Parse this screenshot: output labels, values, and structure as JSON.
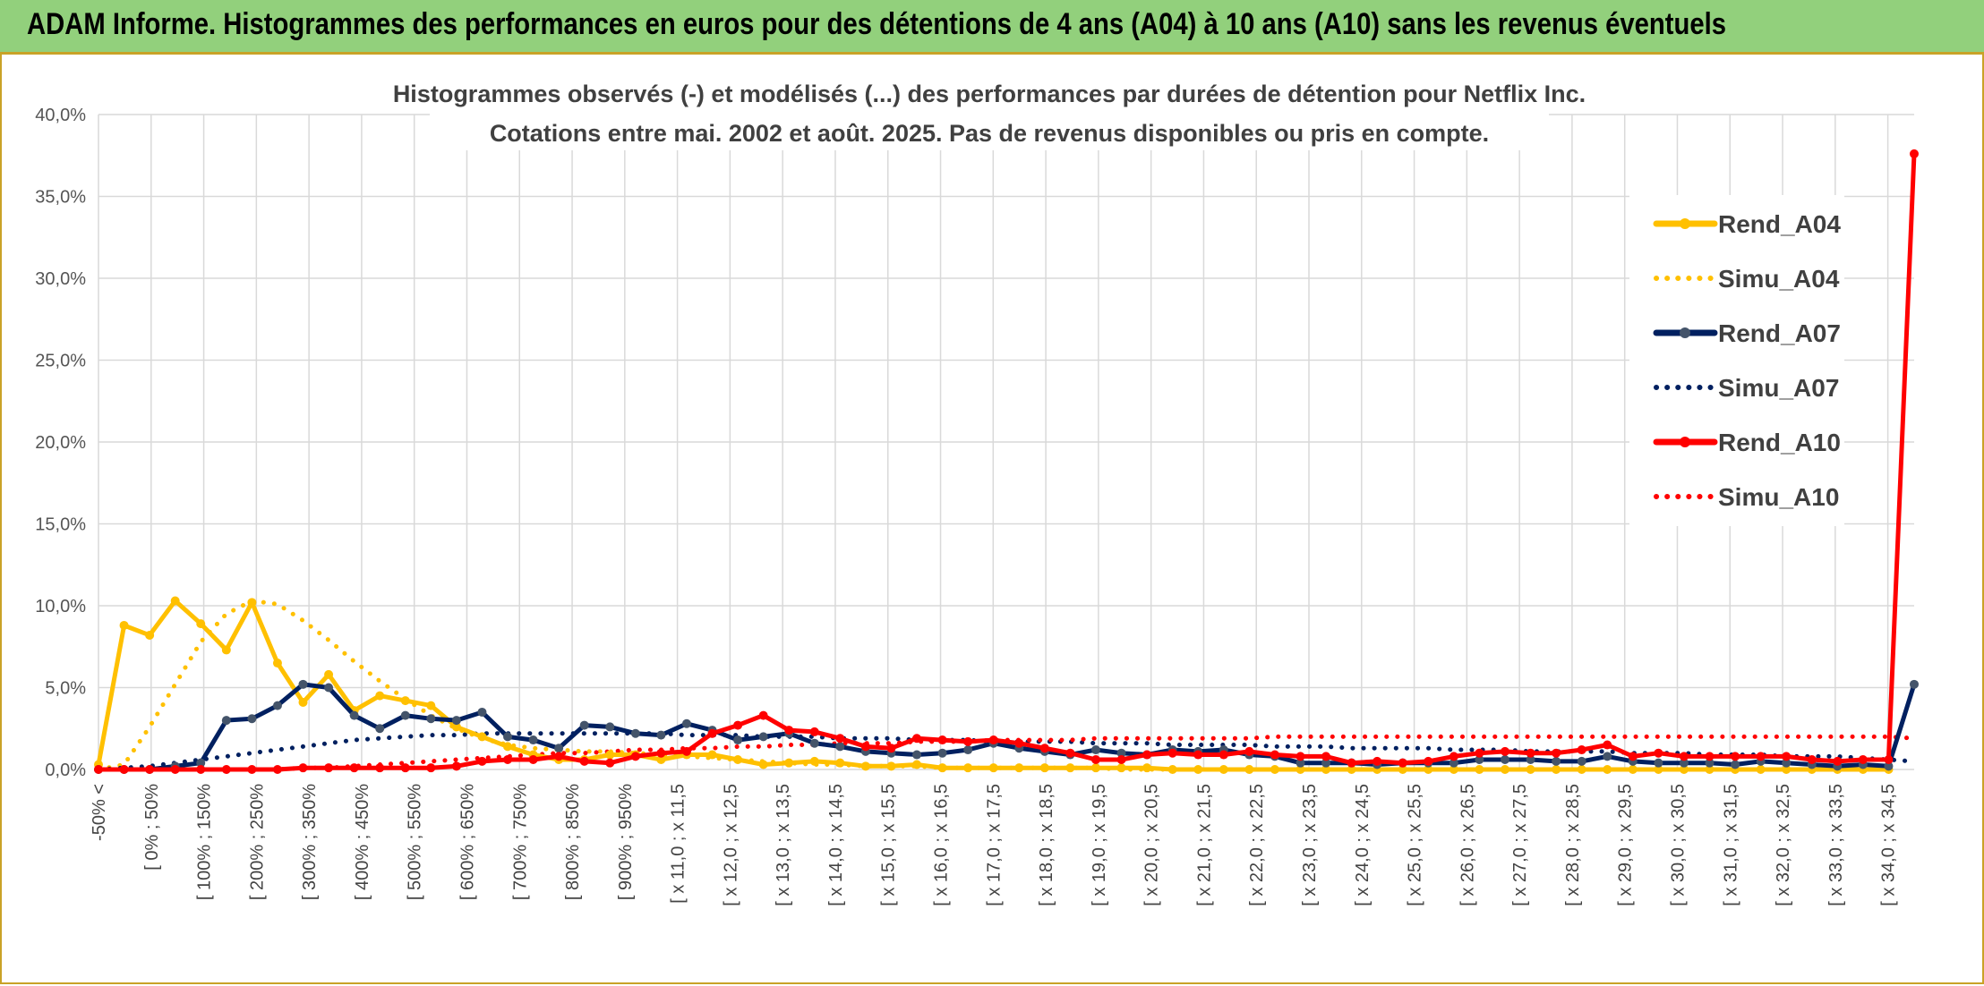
{
  "banner": {
    "title": "ADAM Informe. Histogrammes des performances en euros pour des détentions de 4 ans (A04) à 10 ans (A10) sans les revenus éventuels"
  },
  "colors": {
    "banner_bg": "#92D07C",
    "banner_border": "#C9A227",
    "A04": "#FFC000",
    "A07": "#002060",
    "A07_marker": "#44546A",
    "A10": "#FF0000",
    "grid": "#D9D9D9"
  },
  "chart_data": {
    "type": "line",
    "title_lines": [
      "Histogrammes observés (-) et modélisés (...) des performances par durées de détention pour Netflix Inc.",
      "Cotations entre mai. 2002 et août. 2025. Pas de revenus disponibles ou pris en compte."
    ],
    "ylim": [
      0,
      40
    ],
    "y_ticks": [
      "0,0%",
      "5,0%",
      "10,0%",
      "15,0%",
      "20,0%",
      "25,0%",
      "30,0%",
      "35,0%",
      "40,0%"
    ],
    "grid": true,
    "legend_position": "right",
    "x_labels_shown": [
      "-50% <",
      "[ 0% ; 50%",
      "[ 100% ; 150%",
      "[ 200% ; 250%",
      "[ 300% ; 350%",
      "[ 400% ; 450%",
      "[ 500% ; 550%",
      "[ 600% ; 650%",
      "[ 700% ; 750%",
      "[ 800% ; 850%",
      "[ 900% ; 950%",
      "[ x 11,0 ; x 11,5",
      "[ x 12,0 ; x 12,5",
      "[ x 13,0 ; x 13,5",
      "[ x 14,0 ; x 14,5",
      "[ x 15,0 ; x 15,5",
      "[ x 16,0 ; x 16,5",
      "[ x 17,0 ; x 17,5",
      "[ x 18,0 ; x 18,5",
      "[ x 19,0 ; x 19,5",
      "[ x 20,0 ; x 20,5",
      "[ x 21,0 ; x 21,5",
      "[ x 22,0 ; x 22,5",
      "[ x 23,0 ; x 23,5",
      "[ x 24,0 ; x 24,5",
      "[ x 25,0 ; x 25,5",
      "[ x 26,0 ; x 26,5",
      "[ x 27,0 ; x 27,5",
      "[ x 28,0 ; x 28,5",
      "[ x 29,0 ; x 29,5",
      "[ x 30,0 ; x 30,5",
      "[ x 31,0 ; x 31,5",
      "[ x 32,0 ; x 32,5",
      "[ x 33,0 ; x 33,5",
      "[ x 34,0 ; x 34,5"
    ],
    "series": [
      {
        "name": "Rend_A04",
        "style": "solid",
        "marker": true,
        "color": "#FFC000",
        "values": [
          0.3,
          8.8,
          8.2,
          10.3,
          8.9,
          7.3,
          10.2,
          6.5,
          4.1,
          5.8,
          3.6,
          4.5,
          4.2,
          3.9,
          2.6,
          2.0,
          1.4,
          0.9,
          0.6,
          0.6,
          0.9,
          0.9,
          0.6,
          0.9,
          0.9,
          0.6,
          0.3,
          0.4,
          0.5,
          0.4,
          0.2,
          0.2,
          0.3,
          0.1,
          0.1,
          0.1,
          0.1,
          0.1,
          0.1,
          0.1,
          0.1,
          0.1,
          0,
          0,
          0,
          0,
          0,
          0,
          0,
          0,
          0,
          0,
          0,
          0,
          0,
          0,
          0,
          0,
          0,
          0,
          0,
          0,
          0,
          0,
          0,
          0,
          0,
          0,
          0,
          0,
          0
        ]
      },
      {
        "name": "Simu_A04",
        "style": "dotted",
        "marker": false,
        "color": "#FFC000",
        "values": [
          0,
          0.3,
          2.6,
          5.2,
          7.8,
          9.5,
          10.3,
          10.1,
          9.1,
          7.9,
          6.6,
          5.4,
          4.3,
          3.3,
          2.5,
          1.9,
          1.5,
          1.3,
          1.2,
          1.1,
          1.1,
          1.0,
          0.9,
          0.8,
          0.7,
          0.6,
          0.5,
          0.4,
          0.3,
          0.3,
          0.2,
          0.2,
          0.2,
          0.1,
          0.1,
          0.1,
          0.1,
          0.1,
          0.1,
          0.1,
          0,
          0,
          0,
          0,
          0,
          0,
          0,
          0,
          0,
          0,
          0,
          0,
          0,
          0,
          0,
          0,
          0,
          0,
          0,
          0,
          0,
          0,
          0,
          0,
          0,
          0,
          0,
          0,
          0,
          0,
          0
        ]
      },
      {
        "name": "Rend_A07",
        "style": "solid",
        "marker": true,
        "color": "#002060",
        "values": [
          0,
          0,
          0,
          0.2,
          0.4,
          3.0,
          3.1,
          3.9,
          5.2,
          5.0,
          3.3,
          2.5,
          3.3,
          3.1,
          3.0,
          3.5,
          2.0,
          1.8,
          1.3,
          2.7,
          2.6,
          2.2,
          2.1,
          2.8,
          2.4,
          1.8,
          2.0,
          2.2,
          1.6,
          1.4,
          1.1,
          1.0,
          0.9,
          1.0,
          1.2,
          1.6,
          1.3,
          1.1,
          0.9,
          1.2,
          1.0,
          0.9,
          1.2,
          1.1,
          1.2,
          0.9,
          0.8,
          0.4,
          0.4,
          0.4,
          0.3,
          0.4,
          0.4,
          0.4,
          0.6,
          0.6,
          0.6,
          0.5,
          0.5,
          0.8,
          0.5,
          0.4,
          0.4,
          0.4,
          0.3,
          0.5,
          0.4,
          0.3,
          0.2,
          0.3,
          0.2,
          5.2
        ]
      },
      {
        "name": "Simu_A07",
        "style": "dotted",
        "marker": false,
        "color": "#002060",
        "values": [
          0,
          0.1,
          0.2,
          0.4,
          0.6,
          0.8,
          1.0,
          1.2,
          1.4,
          1.6,
          1.8,
          1.9,
          2.0,
          2.1,
          2.1,
          2.2,
          2.2,
          2.2,
          2.2,
          2.2,
          2.2,
          2.2,
          2.2,
          2.1,
          2.1,
          2.1,
          2.0,
          2.0,
          2.0,
          1.9,
          1.9,
          1.9,
          1.8,
          1.8,
          1.8,
          1.7,
          1.7,
          1.7,
          1.7,
          1.6,
          1.6,
          1.6,
          1.5,
          1.5,
          1.5,
          1.5,
          1.4,
          1.4,
          1.4,
          1.3,
          1.3,
          1.3,
          1.3,
          1.2,
          1.2,
          1.2,
          1.1,
          1.1,
          1.1,
          1.1,
          1.0,
          1.0,
          1.0,
          0.9,
          0.9,
          0.9,
          0.8,
          0.8,
          0.8,
          0.7,
          0.6,
          0.5
        ]
      },
      {
        "name": "Rend_A10",
        "style": "solid",
        "marker": true,
        "color": "#FF0000",
        "values": [
          0,
          0,
          0,
          0,
          0,
          0,
          0,
          0,
          0.1,
          0.1,
          0.1,
          0.1,
          0.1,
          0.1,
          0.2,
          0.5,
          0.6,
          0.6,
          0.8,
          0.5,
          0.4,
          0.8,
          1.0,
          1.1,
          2.2,
          2.7,
          3.3,
          2.4,
          2.3,
          1.9,
          1.4,
          1.3,
          1.9,
          1.8,
          1.7,
          1.8,
          1.6,
          1.3,
          1.0,
          0.6,
          0.6,
          0.9,
          1.0,
          0.9,
          0.9,
          1.1,
          0.9,
          0.8,
          0.8,
          0.4,
          0.5,
          0.4,
          0.5,
          0.8,
          1.0,
          1.1,
          1.0,
          1.0,
          1.2,
          1.5,
          0.8,
          1.0,
          0.8,
          0.8,
          0.8,
          0.8,
          0.8,
          0.6,
          0.5,
          0.6,
          0.6,
          37.6
        ]
      },
      {
        "name": "Simu_A10",
        "style": "dotted",
        "marker": false,
        "color": "#FF0000",
        "values": [
          0,
          0,
          0,
          0,
          0,
          0,
          0,
          0,
          0.1,
          0.1,
          0.2,
          0.3,
          0.4,
          0.5,
          0.6,
          0.7,
          0.8,
          0.9,
          1.0,
          1.0,
          1.1,
          1.2,
          1.2,
          1.3,
          1.3,
          1.4,
          1.4,
          1.5,
          1.5,
          1.6,
          1.6,
          1.6,
          1.7,
          1.7,
          1.7,
          1.8,
          1.8,
          1.8,
          1.8,
          1.9,
          1.9,
          1.9,
          1.9,
          1.9,
          1.9,
          1.9,
          2.0,
          2.0,
          2.0,
          2.0,
          2.0,
          2.0,
          2.0,
          2.0,
          2.0,
          2.0,
          2.0,
          2.0,
          2.0,
          2.0,
          2.0,
          2.0,
          2.0,
          2.0,
          2.0,
          2.0,
          2.0,
          2.0,
          2.0,
          2.0,
          2.0,
          1.9
        ]
      }
    ]
  }
}
